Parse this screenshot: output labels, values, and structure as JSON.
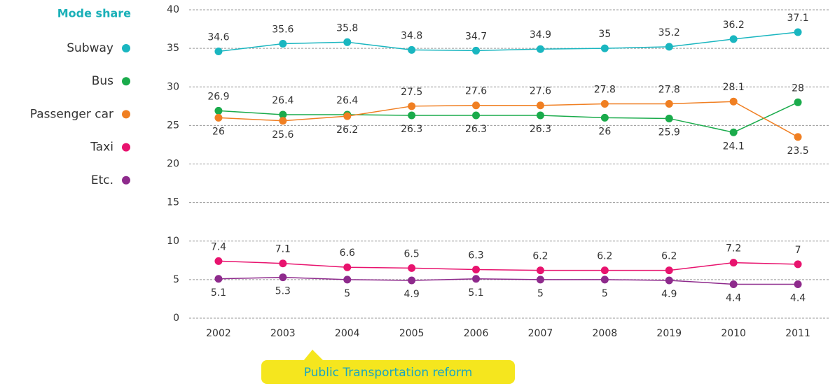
{
  "chart_data": {
    "type": "line",
    "legend_title": "Mode share",
    "categories": [
      "2002",
      "2003",
      "2004",
      "2005",
      "2006",
      "2007",
      "2008",
      "2019",
      "2010",
      "2011"
    ],
    "series": [
      {
        "name": "Subway",
        "color": "#1ab6c0",
        "values": [
          34.6,
          35.6,
          35.8,
          34.8,
          34.7,
          34.9,
          35,
          35.2,
          36.2,
          37.1
        ]
      },
      {
        "name": "Bus",
        "color": "#1aab4b",
        "values": [
          26.9,
          26.4,
          26.4,
          26.3,
          26.3,
          26.3,
          26,
          25.9,
          24.1,
          28
        ]
      },
      {
        "name": "Passenger car",
        "color": "#f07f22",
        "values": [
          26,
          25.6,
          26.2,
          27.5,
          27.6,
          27.6,
          27.8,
          27.8,
          28.1,
          23.5
        ]
      },
      {
        "name": "Taxi",
        "color": "#e8136e",
        "values": [
          7.4,
          7.1,
          6.6,
          6.5,
          6.3,
          6.2,
          6.2,
          6.2,
          7.2,
          7
        ]
      },
      {
        "name": "Etc.",
        "color": "#8e2a8c",
        "values": [
          5.1,
          5.3,
          5,
          4.9,
          5.1,
          5,
          5,
          4.9,
          4.4,
          4.4
        ]
      }
    ],
    "ylim": [
      0,
      40
    ],
    "yticks": [
      0,
      5,
      10,
      15,
      20,
      25,
      30,
      35,
      40
    ],
    "grid": true,
    "annotation": "Public Transportation  reform"
  }
}
